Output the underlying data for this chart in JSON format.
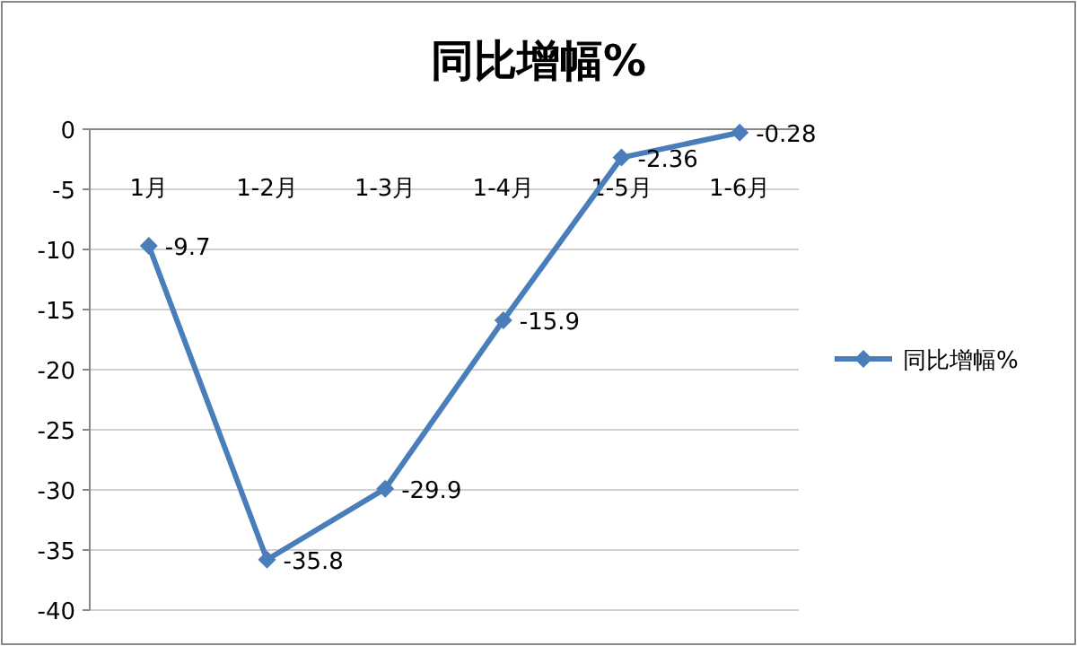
{
  "chart_data": {
    "type": "line",
    "title": "同比增幅%",
    "categories": [
      "1月",
      "1-2月",
      "1-3月",
      "1-4月",
      "1-5月",
      "1-6月"
    ],
    "series": [
      {
        "name": "同比增幅%",
        "color": "#4a7ebb",
        "values": [
          -9.7,
          -35.8,
          -29.9,
          -15.9,
          -2.36,
          -0.28
        ]
      }
    ],
    "ylim": [
      -40,
      0
    ],
    "yticks": [
      -40,
      -35,
      -30,
      -25,
      -20,
      -15,
      -10,
      -5,
      0
    ],
    "grid": "y",
    "legend": "right",
    "marker": "diamond",
    "line_style": "solid",
    "data_labels": true
  }
}
